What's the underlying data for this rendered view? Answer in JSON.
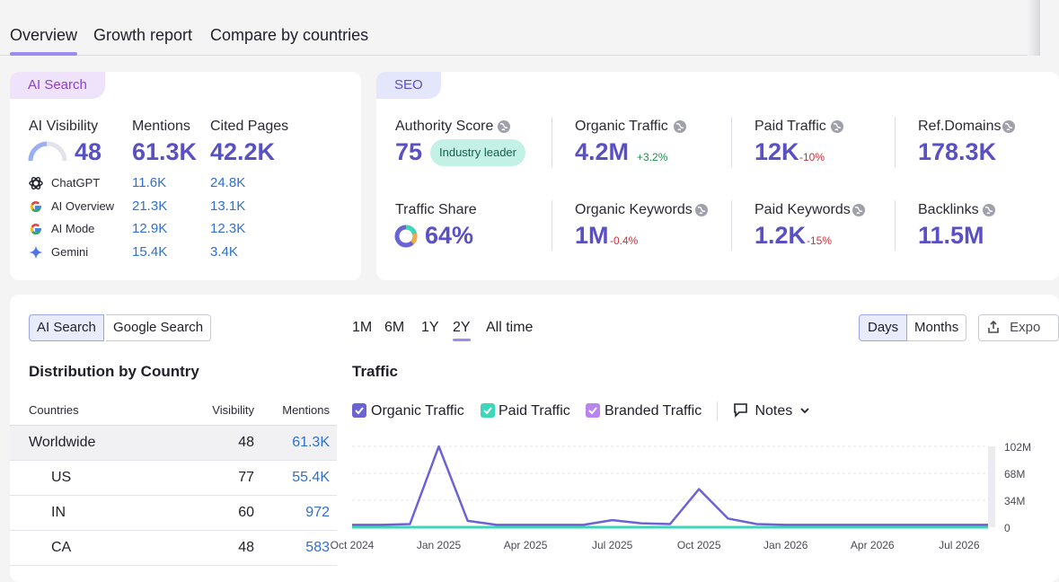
{
  "tabs": [
    "Overview",
    "Growth report",
    "Compare by countries"
  ],
  "ai_search": {
    "pill": "AI Search",
    "headers": {
      "visibility": "AI Visibility",
      "mentions": "Mentions",
      "cited": "Cited Pages"
    },
    "visibility": "48",
    "mentions": "61.3K",
    "cited": "42.2K",
    "engines": [
      {
        "name": "ChatGPT",
        "mentions": "11.6K",
        "cited": "24.8K",
        "icon": "chatgpt-icon"
      },
      {
        "name": "AI Overview",
        "mentions": "21.3K",
        "cited": "13.1K",
        "icon": "google-icon"
      },
      {
        "name": "AI Mode",
        "mentions": "12.9K",
        "cited": "12.3K",
        "icon": "google-icon"
      },
      {
        "name": "Gemini",
        "mentions": "15.4K",
        "cited": "3.4K",
        "icon": "gemini-icon"
      }
    ]
  },
  "seo": {
    "pill": "SEO",
    "authority_label": "Authority Score",
    "authority_value": "75",
    "authority_badge": "Industry leader",
    "organic_traffic_label": "Organic Traffic",
    "organic_traffic_value": "4.2M",
    "organic_traffic_delta": "+3.2%",
    "paid_traffic_label": "Paid Traffic",
    "paid_traffic_value": "12K",
    "paid_traffic_delta": "-10%",
    "ref_domains_label": "Ref.Domains",
    "ref_domains_value": "178.3K",
    "traffic_share_label": "Traffic Share",
    "traffic_share_value": "64%",
    "organic_keywords_label": "Organic Keywords",
    "organic_keywords_value": "1M",
    "organic_keywords_delta": "-0.4%",
    "paid_keywords_label": "Paid Keywords",
    "paid_keywords_value": "1.2K",
    "paid_keywords_delta": "-15%",
    "backlinks_label": "Backlinks",
    "backlinks_value": "11.5M"
  },
  "distribution": {
    "toggle": [
      "AI Search",
      "Google Search"
    ],
    "toggle_selected": "AI Search",
    "title": "Distribution by Country",
    "columns": [
      "Countries",
      "Visibility",
      "Mentions"
    ],
    "rows": [
      {
        "country": "Worldwide",
        "visibility": "48",
        "mentions": "61.3K"
      },
      {
        "country": "US",
        "visibility": "77",
        "mentions": "55.4K"
      },
      {
        "country": "IN",
        "visibility": "60",
        "mentions": "972"
      },
      {
        "country": "CA",
        "visibility": "48",
        "mentions": "583"
      }
    ]
  },
  "traffic": {
    "ranges": [
      "1M",
      "6M",
      "1Y",
      "2Y",
      "All time"
    ],
    "range_selected": "2Y",
    "granularity": [
      "Days",
      "Months"
    ],
    "granularity_selected": "Days",
    "export_label": "Expo",
    "title": "Traffic",
    "legend": [
      "Organic Traffic",
      "Paid Traffic",
      "Branded Traffic"
    ],
    "notes_label": "Notes",
    "colors": {
      "organic": "#6b63d4",
      "paid": "#3dd6b8",
      "branded": "#b983f0",
      "accent": "#5a50c5",
      "link": "#2f6fcf"
    }
  },
  "chart_data": {
    "type": "line",
    "title": "Traffic",
    "x": [
      "Oct 2024",
      "Nov 2024",
      "Dec 2024",
      "Jan 2025",
      "Feb 2025",
      "Mar 2025",
      "Apr 2025",
      "May 2025",
      "Jun 2025",
      "Jul 2025",
      "Aug 2025",
      "Sep 2025",
      "Oct 2025",
      "Nov 2025",
      "Dec 2025",
      "Jan 2026",
      "Feb 2026",
      "Mar 2026",
      "Apr 2026",
      "May 2026",
      "Jun 2026",
      "Jul 2026",
      "Aug 2026"
    ],
    "x_tick_labels": [
      "Oct 2024",
      "Jan 2025",
      "Apr 2025",
      "Jul 2025",
      "Oct 2025",
      "Jan 2026",
      "Apr 2026",
      "Jul 2026"
    ],
    "y_tick_labels": [
      "102M",
      "68M",
      "34M",
      "0"
    ],
    "ylim": [
      0,
      102
    ],
    "y_unit": "M",
    "grid": true,
    "series": [
      {
        "name": "Organic Traffic",
        "values": [
          3,
          3,
          4,
          102,
          8,
          3,
          3,
          3,
          3,
          9,
          5,
          4,
          48,
          11,
          4,
          3,
          3,
          3,
          3,
          3,
          3,
          3,
          3
        ]
      },
      {
        "name": "Paid Traffic",
        "values": [
          0,
          0,
          0,
          0,
          0,
          0,
          0,
          0,
          0,
          0,
          0,
          0,
          0,
          0,
          0,
          0,
          0,
          0,
          0,
          0,
          0,
          0,
          0
        ]
      },
      {
        "name": "Branded Traffic",
        "values": [
          0,
          0,
          0,
          0,
          0,
          0,
          0,
          0,
          0,
          0,
          0,
          0,
          0,
          0,
          0,
          0,
          0,
          0,
          0,
          0,
          0,
          0,
          0
        ]
      }
    ]
  }
}
